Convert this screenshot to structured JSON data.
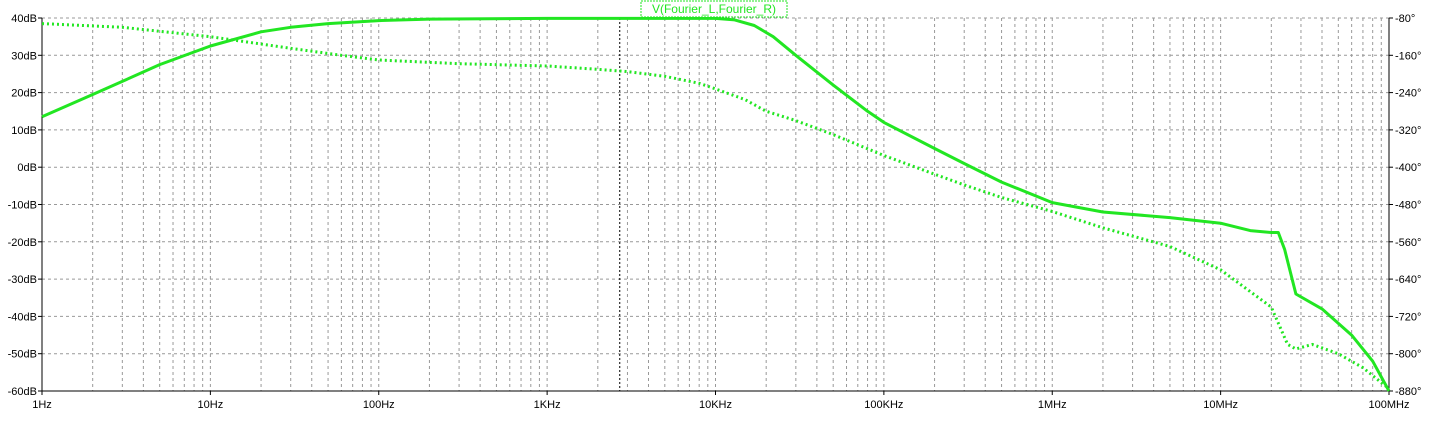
{
  "chart_data": {
    "type": "line",
    "title": "V(Fourier_L,Fourier_R)",
    "x_scale": "log",
    "xlim_hz": [
      1,
      100000000
    ],
    "x_ticks": [
      {
        "v": 1,
        "label": "1Hz"
      },
      {
        "v": 10,
        "label": "10Hz"
      },
      {
        "v": 100,
        "label": "100Hz"
      },
      {
        "v": 1000,
        "label": "1KHz"
      },
      {
        "v": 10000,
        "label": "10KHz"
      },
      {
        "v": 100000,
        "label": "100KHz"
      },
      {
        "v": 1000000,
        "label": "1MHz"
      },
      {
        "v": 10000000,
        "label": "10MHz"
      },
      {
        "v": 100000000,
        "label": "100MHz"
      }
    ],
    "y_left": {
      "unit": "dB",
      "lim": [
        -60,
        40
      ],
      "ticks": [
        {
          "v": 40,
          "label": "40dB"
        },
        {
          "v": 30,
          "label": "30dB"
        },
        {
          "v": 20,
          "label": "20dB"
        },
        {
          "v": 10,
          "label": "10dB"
        },
        {
          "v": 0,
          "label": "0dB"
        },
        {
          "v": -10,
          "label": "-10dB"
        },
        {
          "v": -20,
          "label": "-20dB"
        },
        {
          "v": -30,
          "label": "-30dB"
        },
        {
          "v": -40,
          "label": "-40dB"
        },
        {
          "v": -50,
          "label": "-50dB"
        },
        {
          "v": -60,
          "label": "-60dB"
        }
      ]
    },
    "y_right": {
      "unit": "°",
      "lim": [
        -880,
        -80
      ],
      "ticks": [
        {
          "v": -80,
          "label": "-80°"
        },
        {
          "v": -160,
          "label": "-160°"
        },
        {
          "v": -240,
          "label": "-240°"
        },
        {
          "v": -320,
          "label": "-320°"
        },
        {
          "v": -400,
          "label": "-400°"
        },
        {
          "v": -480,
          "label": "-480°"
        },
        {
          "v": -560,
          "label": "-560°"
        },
        {
          "v": -640,
          "label": "-640°"
        },
        {
          "v": -720,
          "label": "-720°"
        },
        {
          "v": -800,
          "label": "-800°"
        },
        {
          "v": -880,
          "label": "-880°"
        }
      ]
    },
    "grid": true,
    "cursor_hz": 2700,
    "colors": {
      "trace": "#22e622",
      "grid": "#999999",
      "axis": "#000000",
      "background": "#ffffff"
    },
    "series": [
      {
        "name": "magnitude",
        "style": "solid",
        "axis": "left",
        "points": [
          [
            1,
            13.5
          ],
          [
            2,
            19.5
          ],
          [
            3,
            23
          ],
          [
            5,
            27.5
          ],
          [
            10,
            32.5
          ],
          [
            20,
            36.3
          ],
          [
            30,
            37.5
          ],
          [
            50,
            38.5
          ],
          [
            100,
            39.3
          ],
          [
            200,
            39.7
          ],
          [
            1000,
            39.9
          ],
          [
            5000,
            39.9
          ],
          [
            10000,
            39.9
          ],
          [
            13000,
            39.5
          ],
          [
            17000,
            38
          ],
          [
            22000,
            35
          ],
          [
            30000,
            30
          ],
          [
            50000,
            22
          ],
          [
            80000,
            15
          ],
          [
            100000,
            12
          ],
          [
            200000,
            5
          ],
          [
            300000,
            1
          ],
          [
            500000,
            -4
          ],
          [
            1000000,
            -9.5
          ],
          [
            2000000,
            -12
          ],
          [
            5000000,
            -13.5
          ],
          [
            10000000,
            -15
          ],
          [
            15000000,
            -17
          ],
          [
            20000000,
            -17.5
          ],
          [
            22000000,
            -17.5
          ],
          [
            24000000,
            -22
          ],
          [
            28000000,
            -34
          ],
          [
            40000000,
            -38
          ],
          [
            60000000,
            -45
          ],
          [
            80000000,
            -52
          ],
          [
            100000000,
            -60
          ]
        ]
      },
      {
        "name": "phase",
        "style": "dotted",
        "axis": "right",
        "points": [
          [
            1,
            -92
          ],
          [
            3,
            -100
          ],
          [
            10,
            -120
          ],
          [
            30,
            -145
          ],
          [
            60,
            -160
          ],
          [
            100,
            -170
          ],
          [
            300,
            -178
          ],
          [
            1000,
            -183
          ],
          [
            2000,
            -190
          ],
          [
            3000,
            -195
          ],
          [
            5000,
            -205
          ],
          [
            8000,
            -220
          ],
          [
            10000,
            -232
          ],
          [
            15000,
            -255
          ],
          [
            20000,
            -280
          ],
          [
            30000,
            -300
          ],
          [
            50000,
            -330
          ],
          [
            100000,
            -375
          ],
          [
            200000,
            -415
          ],
          [
            300000,
            -438
          ],
          [
            500000,
            -465
          ],
          [
            1000000,
            -495
          ],
          [
            2000000,
            -530
          ],
          [
            5000000,
            -570
          ],
          [
            10000000,
            -620
          ],
          [
            20000000,
            -700
          ],
          [
            25000000,
            -780
          ],
          [
            28000000,
            -790
          ],
          [
            35000000,
            -780
          ],
          [
            50000000,
            -800
          ],
          [
            70000000,
            -830
          ],
          [
            100000000,
            -875
          ]
        ]
      }
    ]
  }
}
